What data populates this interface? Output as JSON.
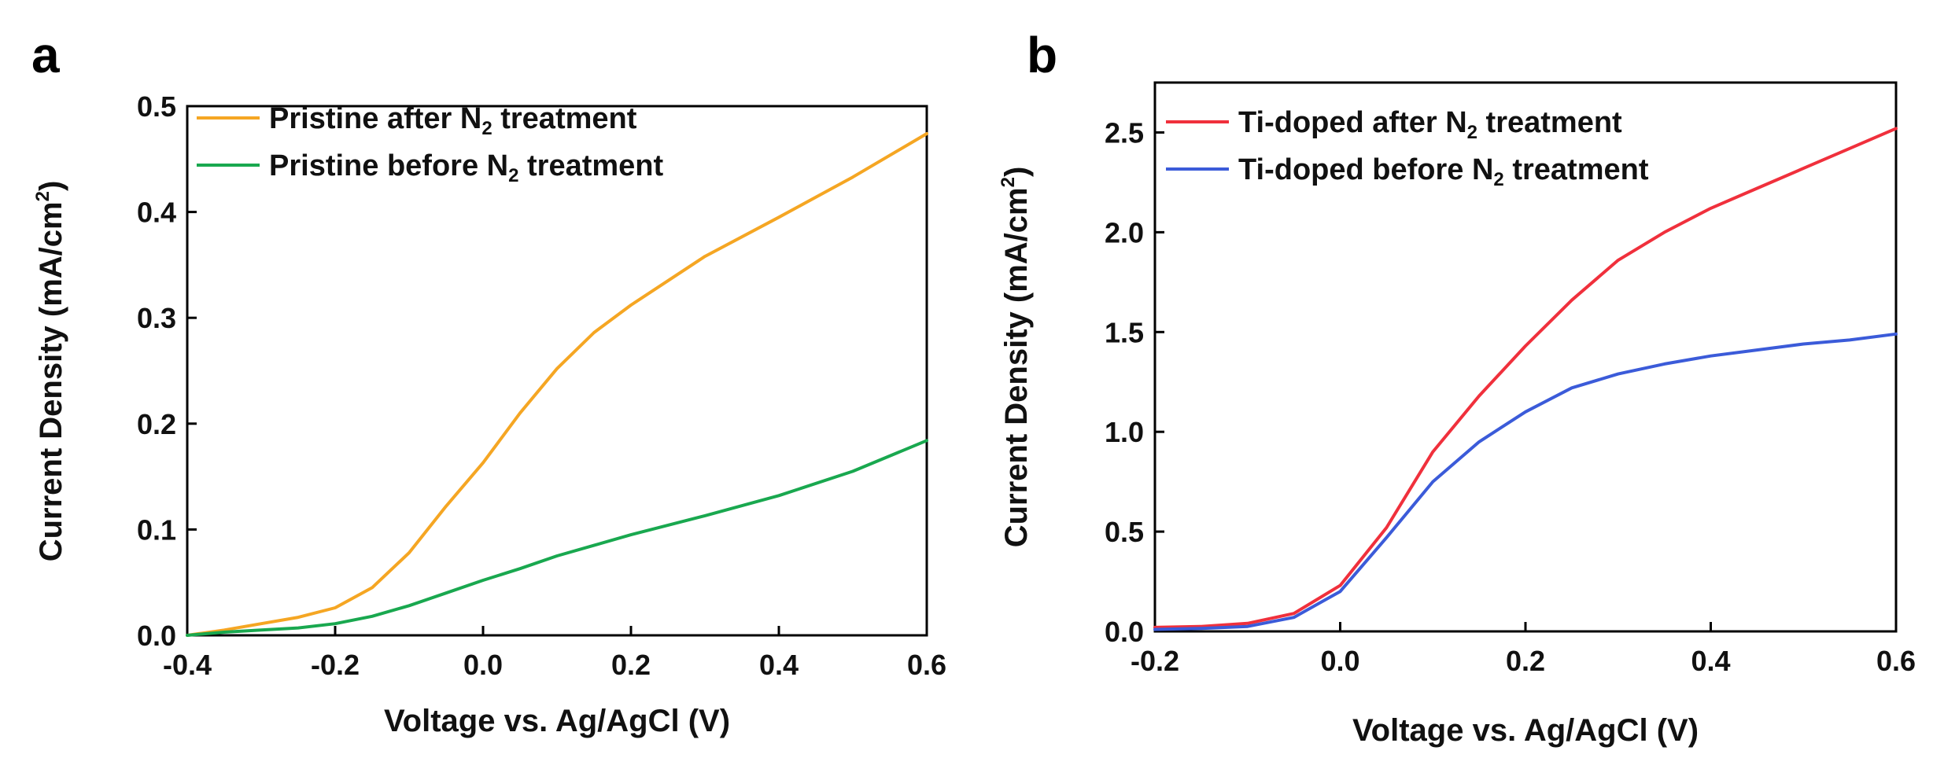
{
  "chart_data": [
    {
      "panel": "a",
      "type": "line",
      "xlabel": "Voltage vs. Ag/AgCl (V)",
      "ylabel_main": "Current Density (mA/cm",
      "ylabel_sup": "2",
      "ylabel_close": ")",
      "xlim": [
        -0.4,
        0.6
      ],
      "ylim": [
        0.0,
        0.5
      ],
      "xticks": [
        "-0.4",
        "-0.2",
        "0.0",
        "0.2",
        "0.4",
        "0.6"
      ],
      "yticks": [
        "0.0",
        "0.1",
        "0.2",
        "0.3",
        "0.4",
        "0.5"
      ],
      "legend_position": "top-left",
      "series": [
        {
          "label_pre": "Pristine after N",
          "label_sub": "2",
          "label_post": " treatment",
          "color": "#F5A623",
          "x": [
            -0.4,
            -0.35,
            -0.3,
            -0.25,
            -0.2,
            -0.15,
            -0.1,
            -0.05,
            0.0,
            0.05,
            0.1,
            0.15,
            0.2,
            0.3,
            0.4,
            0.5,
            0.6
          ],
          "y": [
            0.0,
            0.005,
            0.011,
            0.017,
            0.026,
            0.045,
            0.078,
            0.122,
            0.163,
            0.21,
            0.252,
            0.286,
            0.312,
            0.358,
            0.395,
            0.433,
            0.474
          ]
        },
        {
          "label_pre": "Pristine before N",
          "label_sub": "2",
          "label_post": " treatment",
          "color": "#19A84F",
          "x": [
            -0.4,
            -0.35,
            -0.3,
            -0.25,
            -0.2,
            -0.15,
            -0.1,
            -0.05,
            0.0,
            0.05,
            0.1,
            0.15,
            0.2,
            0.3,
            0.4,
            0.5,
            0.6
          ],
          "y": [
            0.0,
            0.003,
            0.005,
            0.007,
            0.011,
            0.018,
            0.028,
            0.04,
            0.052,
            0.063,
            0.075,
            0.085,
            0.095,
            0.113,
            0.132,
            0.155,
            0.184
          ]
        }
      ]
    },
    {
      "panel": "b",
      "type": "line",
      "xlabel": "Voltage vs. Ag/AgCl (V)",
      "ylabel_main": "Current Density (mA/cm",
      "ylabel_sup": "2",
      "ylabel_close": ")",
      "xlim": [
        -0.2,
        0.6
      ],
      "ylim": [
        0.0,
        2.75
      ],
      "xticks": [
        "-0.2",
        "0.0",
        "0.2",
        "0.4",
        "0.6"
      ],
      "yticks": [
        "0.0",
        "0.5",
        "1.0",
        "1.5",
        "2.0",
        "2.5"
      ],
      "legend_position": "top-left",
      "series": [
        {
          "label_pre": "Ti-doped after N",
          "label_sub": "2",
          "label_post": " treatment",
          "color": "#F0303C",
          "x": [
            -0.2,
            -0.15,
            -0.1,
            -0.05,
            0.0,
            0.05,
            0.1,
            0.15,
            0.2,
            0.25,
            0.3,
            0.35,
            0.4,
            0.45,
            0.5,
            0.55,
            0.6
          ],
          "y": [
            0.02,
            0.025,
            0.04,
            0.09,
            0.23,
            0.52,
            0.9,
            1.18,
            1.43,
            1.66,
            1.86,
            2.0,
            2.12,
            2.22,
            2.32,
            2.42,
            2.52
          ]
        },
        {
          "label_pre": "Ti-doped before N",
          "label_sub": "2",
          "label_post": " treatment",
          "color": "#3B5BD9",
          "x": [
            -0.2,
            -0.15,
            -0.1,
            -0.05,
            0.0,
            0.05,
            0.1,
            0.15,
            0.2,
            0.25,
            0.3,
            0.35,
            0.4,
            0.45,
            0.5,
            0.55,
            0.6
          ],
          "y": [
            0.01,
            0.015,
            0.025,
            0.07,
            0.2,
            0.47,
            0.75,
            0.95,
            1.1,
            1.22,
            1.29,
            1.34,
            1.38,
            1.41,
            1.44,
            1.46,
            1.49
          ]
        }
      ]
    }
  ]
}
